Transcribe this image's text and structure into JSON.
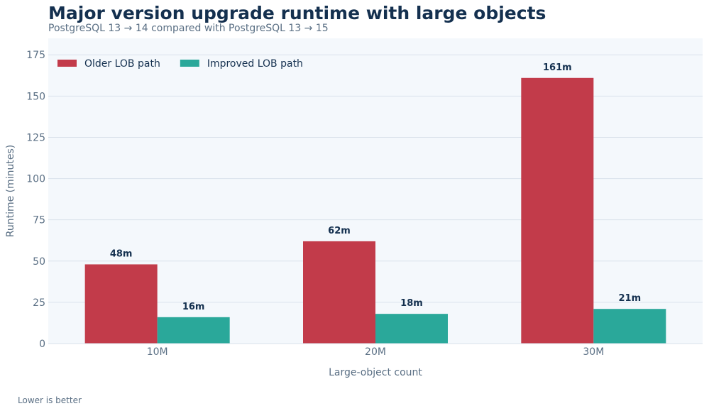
{
  "title": "Major version upgrade runtime with large objects",
  "subtitle": "PostgreSQL 13 → 14 compared with PostgreSQL 13 → 15",
  "footnote": "Lower is better",
  "chart_data": {
    "type": "bar",
    "categories": [
      "10M",
      "20M",
      "30M"
    ],
    "series": [
      {
        "name": "Older LOB path",
        "values": [
          48,
          62,
          161
        ],
        "labels": [
          "48m",
          "62m",
          "161m"
        ],
        "color": "#c23b4a"
      },
      {
        "name": "Improved LOB path",
        "values": [
          16,
          18,
          21
        ],
        "labels": [
          "16m",
          "18m",
          "21m"
        ],
        "color": "#2aa89a"
      }
    ],
    "xlabel": "Large-object count",
    "ylabel": "Runtime (minutes)",
    "ylim": [
      0,
      185
    ],
    "yticks": [
      0,
      25,
      50,
      75,
      100,
      125,
      150,
      175
    ],
    "grid": true,
    "legend": "top-left",
    "plot_background": "#f4f8fc",
    "grid_color": "#d9e2eb"
  }
}
